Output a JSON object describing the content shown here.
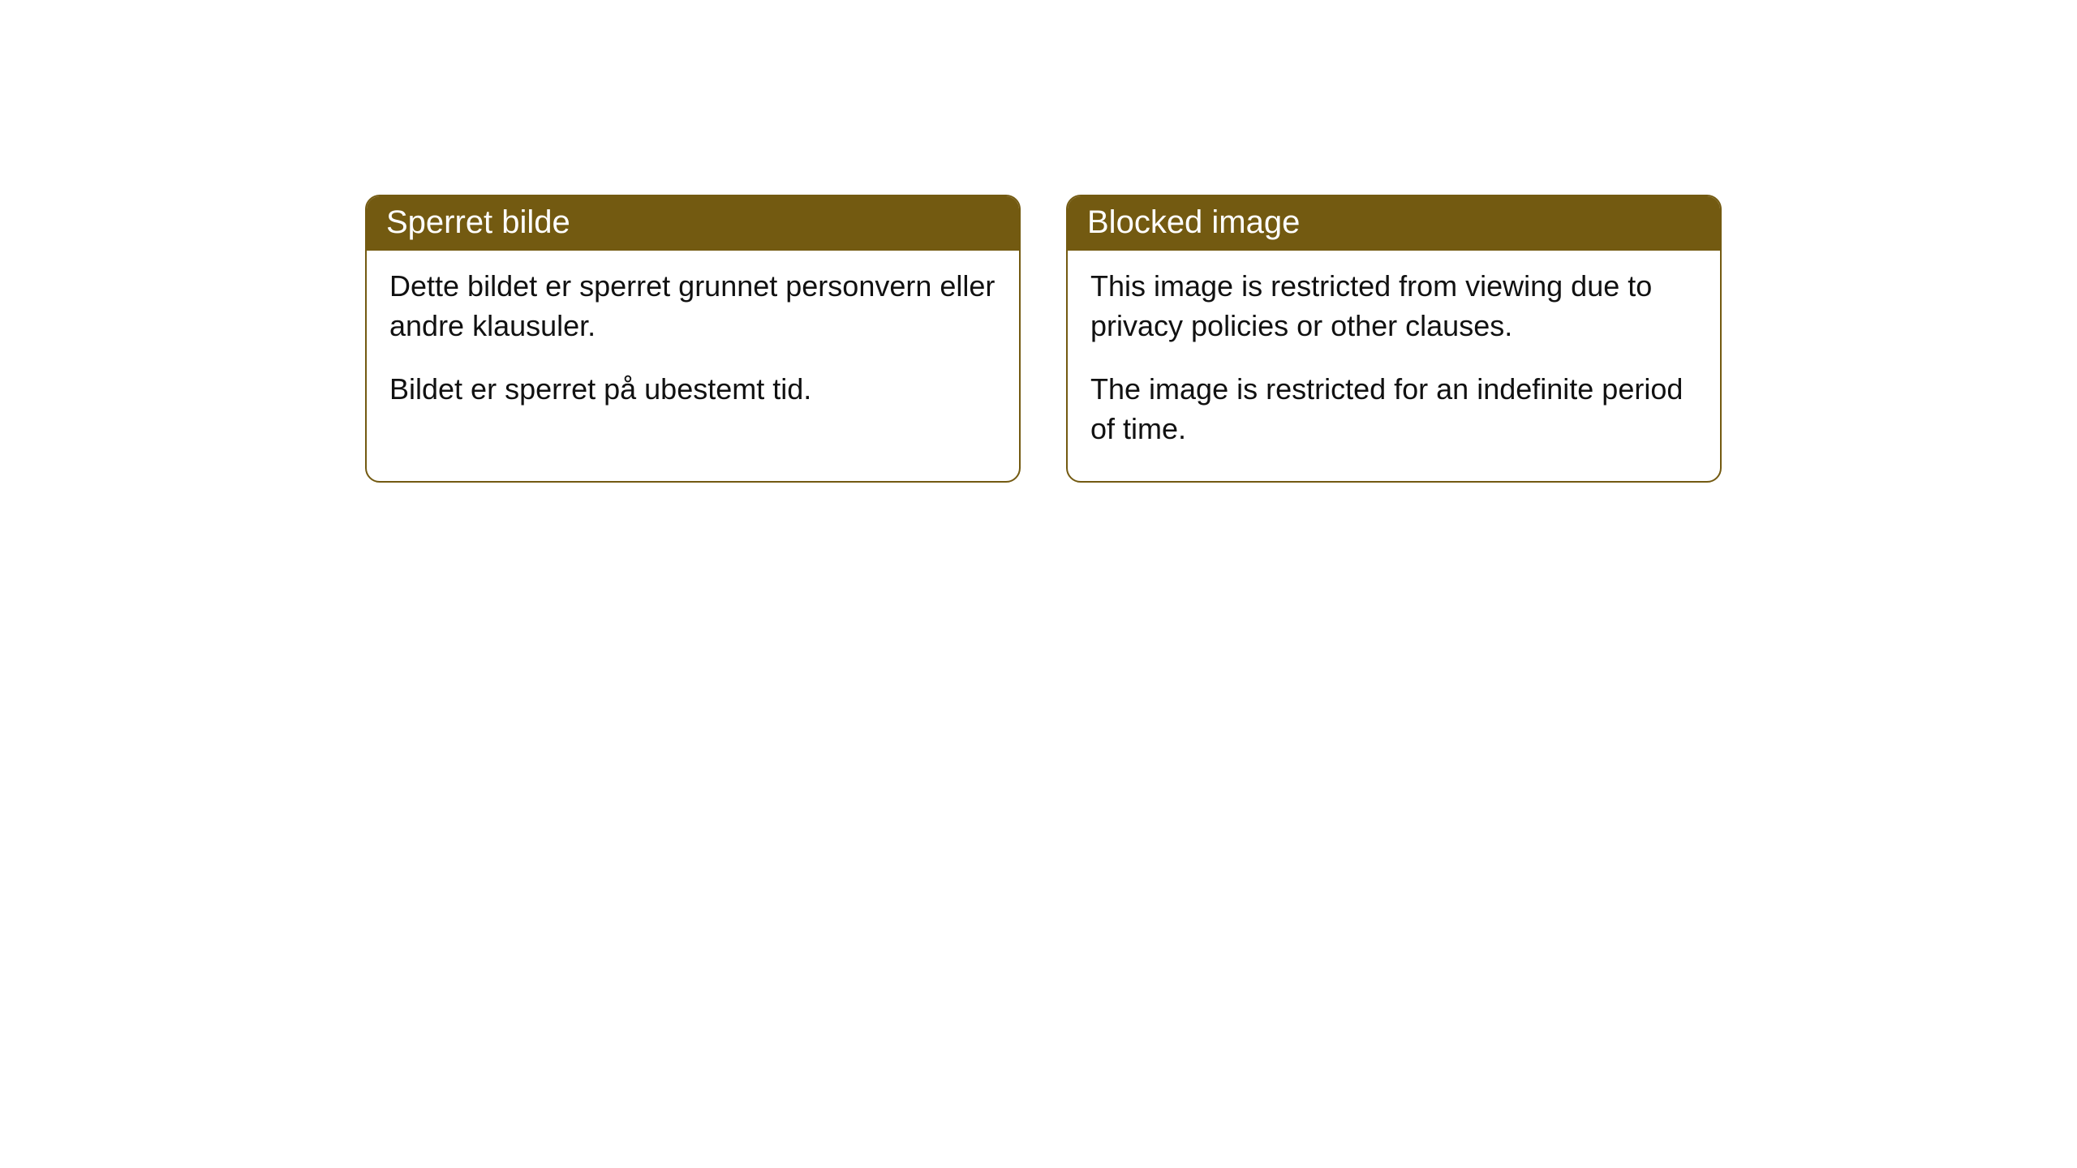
{
  "cards": [
    {
      "title": "Sperret bilde",
      "paragraph1": "Dette bildet er sperret grunnet personvern eller andre klausuler.",
      "paragraph2": "Bildet er sperret på ubestemt tid."
    },
    {
      "title": "Blocked image",
      "paragraph1": "This image is restricted from viewing due to privacy policies or other clauses.",
      "paragraph2": "The image is restricted for an indefinite period of time."
    }
  ],
  "styling": {
    "header_bg_color": "#735a11",
    "header_text_color": "#ffffff",
    "border_color": "#735a11",
    "body_bg_color": "#ffffff",
    "body_text_color": "#111111",
    "border_radius": 18,
    "header_fontsize": 40,
    "body_fontsize": 36
  }
}
